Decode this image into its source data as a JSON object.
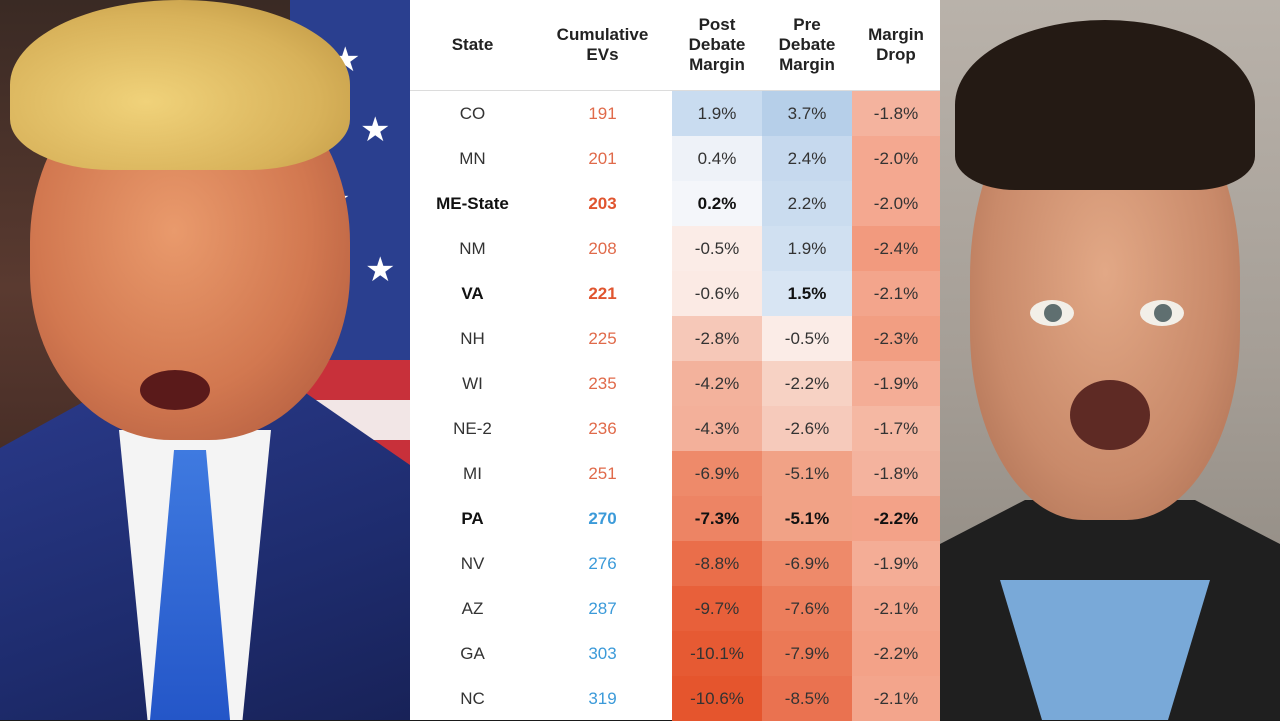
{
  "table": {
    "headers": {
      "state": "State",
      "cumulative_evs": [
        "Cumulative",
        "EVs"
      ],
      "post": [
        "Post",
        "Debate",
        "Margin"
      ],
      "pre": [
        "Pre",
        "Debate",
        "Margin"
      ],
      "drop": [
        "Margin",
        "Drop"
      ]
    },
    "rows": [
      {
        "state": "CO",
        "ev": "191",
        "post": "1.9%",
        "pre": "3.7%",
        "drop": "-1.8%",
        "bold_state": false,
        "bold_ev": false,
        "bold_post": false,
        "bold_pre": false,
        "bold_drop": false,
        "ev_color": "#e06a4a",
        "post_bg": "#c9dcf0",
        "pre_bg": "#b6cfe9",
        "drop_bg": "#f4b39e"
      },
      {
        "state": "MN",
        "ev": "201",
        "post": "0.4%",
        "pre": "2.4%",
        "drop": "-2.0%",
        "bold_state": false,
        "bold_ev": false,
        "bold_post": false,
        "bold_pre": false,
        "bold_drop": false,
        "ev_color": "#e06a4a",
        "post_bg": "#eef2f8",
        "pre_bg": "#c6d9ee",
        "drop_bg": "#f4a890"
      },
      {
        "state": "ME-State",
        "ev": "203",
        "post": "0.2%",
        "pre": "2.2%",
        "drop": "-2.0%",
        "bold_state": true,
        "bold_ev": true,
        "bold_post": true,
        "bold_pre": false,
        "bold_drop": false,
        "ev_color": "#e0552f",
        "post_bg": "#f4f6fa",
        "pre_bg": "#cadcef",
        "drop_bg": "#f4a890"
      },
      {
        "state": "NM",
        "ev": "208",
        "post": "-0.5%",
        "pre": "1.9%",
        "drop": "-2.4%",
        "bold_state": false,
        "bold_ev": false,
        "bold_post": false,
        "bold_pre": false,
        "bold_drop": false,
        "ev_color": "#e06a4a",
        "post_bg": "#fbece7",
        "pre_bg": "#d0e0f1",
        "drop_bg": "#f29a7e"
      },
      {
        "state": "VA",
        "ev": "221",
        "post": "-0.6%",
        "pre": "1.5%",
        "drop": "-2.1%",
        "bold_state": true,
        "bold_ev": true,
        "bold_post": false,
        "bold_pre": true,
        "bold_drop": false,
        "ev_color": "#e0552f",
        "post_bg": "#fbeae4",
        "pre_bg": "#d8e5f3",
        "drop_bg": "#f3a58c"
      },
      {
        "state": "NH",
        "ev": "225",
        "post": "-2.8%",
        "pre": "-0.5%",
        "drop": "-2.3%",
        "bold_state": false,
        "bold_ev": false,
        "bold_post": false,
        "bold_pre": false,
        "bold_drop": false,
        "ev_color": "#e06a4a",
        "post_bg": "#f6c8b8",
        "pre_bg": "#fbece7",
        "drop_bg": "#f29e82"
      },
      {
        "state": "WI",
        "ev": "235",
        "post": "-4.2%",
        "pre": "-2.2%",
        "drop": "-1.9%",
        "bold_state": false,
        "bold_ev": false,
        "bold_post": false,
        "bold_pre": false,
        "bold_drop": false,
        "ev_color": "#e06a4a",
        "post_bg": "#f3b29c",
        "pre_bg": "#f7d2c4",
        "drop_bg": "#f4ad96"
      },
      {
        "state": "NE-2",
        "ev": "236",
        "post": "-4.3%",
        "pre": "-2.6%",
        "drop": "-1.7%",
        "bold_state": false,
        "bold_ev": false,
        "bold_post": false,
        "bold_pre": false,
        "bold_drop": false,
        "ev_color": "#e06a4a",
        "post_bg": "#f3b09a",
        "pre_bg": "#f6cabb",
        "drop_bg": "#f5b8a3"
      },
      {
        "state": "MI",
        "ev": "251",
        "post": "-6.9%",
        "pre": "-5.1%",
        "drop": "-1.8%",
        "bold_state": false,
        "bold_ev": false,
        "bold_post": false,
        "bold_pre": false,
        "bold_drop": false,
        "ev_color": "#e06a4a",
        "post_bg": "#ee8a6a",
        "pre_bg": "#f1a286",
        "drop_bg": "#f4b39e"
      },
      {
        "state": "PA",
        "ev": "270",
        "post": "-7.3%",
        "pre": "-5.1%",
        "drop": "-2.2%",
        "bold_state": true,
        "bold_ev": true,
        "bold_post": true,
        "bold_pre": true,
        "bold_drop": true,
        "ev_color": "#3b9ad9",
        "post_bg": "#ed8464",
        "pre_bg": "#f1a286",
        "drop_bg": "#f3a288"
      },
      {
        "state": "NV",
        "ev": "276",
        "post": "-8.8%",
        "pre": "-6.9%",
        "drop": "-1.9%",
        "bold_state": false,
        "bold_ev": false,
        "bold_post": false,
        "bold_pre": false,
        "bold_drop": false,
        "ev_color": "#3b9ad9",
        "post_bg": "#ea6e4a",
        "pre_bg": "#ee8a6a",
        "drop_bg": "#f4ad96"
      },
      {
        "state": "AZ",
        "ev": "287",
        "post": "-9.7%",
        "pre": "-7.6%",
        "drop": "-2.1%",
        "bold_state": false,
        "bold_ev": false,
        "bold_post": false,
        "bold_pre": false,
        "bold_drop": false,
        "ev_color": "#3b9ad9",
        "post_bg": "#e8603a",
        "pre_bg": "#ec7e5c",
        "drop_bg": "#f3a58c"
      },
      {
        "state": "GA",
        "ev": "303",
        "post": "-10.1%",
        "pre": "-7.9%",
        "drop": "-2.2%",
        "bold_state": false,
        "bold_ev": false,
        "bold_post": false,
        "bold_pre": false,
        "bold_drop": false,
        "ev_color": "#3b9ad9",
        "post_bg": "#e65a33",
        "pre_bg": "#eb7956",
        "drop_bg": "#f3a288"
      },
      {
        "state": "NC",
        "ev": "319",
        "post": "-10.6%",
        "pre": "-8.5%",
        "drop": "-2.1%",
        "bold_state": false,
        "bold_ev": false,
        "bold_post": false,
        "bold_pre": false,
        "bold_drop": false,
        "ev_color": "#3b9ad9",
        "post_bg": "#e5552d",
        "pre_bg": "#ea7250",
        "drop_bg": "#f3a58c"
      }
    ]
  }
}
